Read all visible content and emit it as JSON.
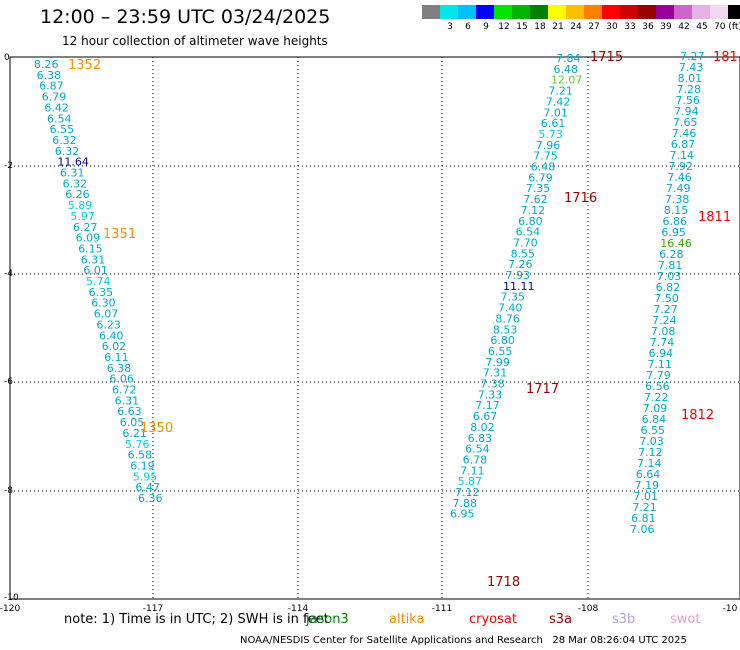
{
  "title": "12:00 – 23:59 UTC 03/24/2025",
  "subtitle": "12 hour collection of altimeter wave heights",
  "colorbar": {
    "colors": [
      "#808080",
      "#00e5e5",
      "#00bfff",
      "#0000ff",
      "#00e500",
      "#00b400",
      "#008000",
      "#ffff00",
      "#ffbf00",
      "#ff8000",
      "#ff0000",
      "#cc0000",
      "#990000",
      "#990099",
      "#cc66cc",
      "#e5b2e5",
      "#f2d8f2",
      "#000000"
    ],
    "labels": [
      "3",
      "6",
      "9",
      "12",
      "15",
      "18",
      "21",
      "24",
      "27",
      "30",
      "33",
      "36",
      "39",
      "42",
      "45",
      "70 (ft)"
    ]
  },
  "axes": {
    "x_ticks": [
      "-120",
      "-117",
      "-114",
      "-111",
      "-108",
      "-10"
    ],
    "y_ticks": [
      "0",
      "-2",
      "-4",
      "-6",
      "-8",
      "-10"
    ]
  },
  "note": {
    "text": "note: 1) Time is in UTC; 2) SWH is in feet",
    "satellites": [
      {
        "name": "jason3",
        "color": "#008000"
      },
      {
        "name": "altika",
        "color": "#ff8c00"
      },
      {
        "name": "cryosat",
        "color": "#ff0000"
      },
      {
        "name": "s3a",
        "color": "#a00000"
      },
      {
        "name": "s3b",
        "color": "#b8a0e0"
      },
      {
        "name": "swot",
        "color": "#e0a0d8"
      }
    ]
  },
  "footer": "NOAA/NESDIS Center for Satellite Applications and Research   28 Mar 08:26:04 UTC 2025",
  "tracks": [
    {
      "values": [
        {
          "v": "8.26",
          "c": "#00aacc"
        },
        {
          "v": "6.38",
          "c": "#00aacc"
        },
        {
          "v": "6.87",
          "c": "#00aacc"
        },
        {
          "v": "6.79",
          "c": "#00aacc"
        },
        {
          "v": "6.42",
          "c": "#00aacc"
        },
        {
          "v": "6.54",
          "c": "#00aacc"
        },
        {
          "v": "6.55",
          "c": "#00aacc"
        },
        {
          "v": "6.32",
          "c": "#00aacc"
        },
        {
          "v": "6.32",
          "c": "#00aacc"
        },
        {
          "v": "11.64",
          "c": "#0000aa"
        },
        {
          "v": "6.31",
          "c": "#00aacc"
        },
        {
          "v": "6.32",
          "c": "#00aacc"
        },
        {
          "v": "6.26",
          "c": "#00aacc"
        },
        {
          "v": "5.89",
          "c": "#00d0e0"
        },
        {
          "v": "5.97",
          "c": "#00d0e0"
        },
        {
          "v": "6.27",
          "c": "#00aacc"
        },
        {
          "v": "6.09",
          "c": "#00aacc"
        },
        {
          "v": "6.15",
          "c": "#00aacc"
        },
        {
          "v": "6.31",
          "c": "#00aacc"
        },
        {
          "v": "6.01",
          "c": "#00aacc"
        },
        {
          "v": "5.74",
          "c": "#00d0e0"
        },
        {
          "v": "6.35",
          "c": "#00aacc"
        },
        {
          "v": "6.30",
          "c": "#00aacc"
        },
        {
          "v": "6.07",
          "c": "#00aacc"
        },
        {
          "v": "6.23",
          "c": "#00aacc"
        },
        {
          "v": "6.40",
          "c": "#00aacc"
        },
        {
          "v": "6.02",
          "c": "#00aacc"
        },
        {
          "v": "6.11",
          "c": "#00aacc"
        },
        {
          "v": "6.38",
          "c": "#00aacc"
        },
        {
          "v": "6.06",
          "c": "#00aacc"
        },
        {
          "v": "6.72",
          "c": "#00aacc"
        },
        {
          "v": "6.31",
          "c": "#00aacc"
        },
        {
          "v": "6.63",
          "c": "#00aacc"
        },
        {
          "v": "6.05",
          "c": "#00aacc"
        },
        {
          "v": "6.21",
          "c": "#00aacc"
        },
        {
          "v": "5.76",
          "c": "#00d0e0"
        },
        {
          "v": "6.58",
          "c": "#00aacc"
        },
        {
          "v": "6.19",
          "c": "#00aacc"
        },
        {
          "v": "5.95",
          "c": "#00d0e0"
        },
        {
          "v": "6.47",
          "c": "#00aacc"
        },
        {
          "v": "6.36",
          "c": "#00aacc"
        }
      ]
    },
    {
      "values": [
        {
          "v": "7.84",
          "c": "#00aacc"
        },
        {
          "v": "6.48",
          "c": "#00aacc"
        },
        {
          "v": "12.07",
          "c": "#66cc33"
        },
        {
          "v": "7.21",
          "c": "#00aacc"
        },
        {
          "v": "7.42",
          "c": "#00aacc"
        },
        {
          "v": "7.01",
          "c": "#00aacc"
        },
        {
          "v": "6.61",
          "c": "#00aacc"
        },
        {
          "v": "5.73",
          "c": "#00d0e0"
        },
        {
          "v": "7.96",
          "c": "#00aacc"
        },
        {
          "v": "7.75",
          "c": "#00aacc"
        },
        {
          "v": "6.48",
          "c": "#00aacc"
        },
        {
          "v": "6.79",
          "c": "#00aacc"
        },
        {
          "v": "7.35",
          "c": "#00aacc"
        },
        {
          "v": "7.62",
          "c": "#00aacc"
        },
        {
          "v": "7.12",
          "c": "#00aacc"
        },
        {
          "v": "6.80",
          "c": "#00aacc"
        },
        {
          "v": "6.54",
          "c": "#00aacc"
        },
        {
          "v": "7.70",
          "c": "#00aacc"
        },
        {
          "v": "8.55",
          "c": "#00aacc"
        },
        {
          "v": "7.26",
          "c": "#00aacc"
        },
        {
          "v": "7.93",
          "c": "#00aacc"
        },
        {
          "v": "11.11",
          "c": "#0000aa"
        },
        {
          "v": "7.35",
          "c": "#00aacc"
        },
        {
          "v": "7.40",
          "c": "#00aacc"
        },
        {
          "v": "8.76",
          "c": "#00aacc"
        },
        {
          "v": "8.53",
          "c": "#00aacc"
        },
        {
          "v": "6.80",
          "c": "#00aacc"
        },
        {
          "v": "6.55",
          "c": "#00aacc"
        },
        {
          "v": "7.99",
          "c": "#00aacc"
        },
        {
          "v": "7.31",
          "c": "#00aacc"
        },
        {
          "v": "7.38",
          "c": "#00aacc"
        },
        {
          "v": "7.33",
          "c": "#00aacc"
        },
        {
          "v": "7.17",
          "c": "#00aacc"
        },
        {
          "v": "6.67",
          "c": "#00aacc"
        },
        {
          "v": "8.02",
          "c": "#00aacc"
        },
        {
          "v": "6.83",
          "c": "#00aacc"
        },
        {
          "v": "6.54",
          "c": "#00aacc"
        },
        {
          "v": "6.78",
          "c": "#00aacc"
        },
        {
          "v": "7.11",
          "c": "#00aacc"
        },
        {
          "v": "5.87",
          "c": "#00d0e0"
        },
        {
          "v": "7.12",
          "c": "#00aacc"
        },
        {
          "v": "7.88",
          "c": "#00aacc"
        },
        {
          "v": "6.95",
          "c": "#00aacc"
        }
      ]
    },
    {
      "values": [
        {
          "v": "7.27",
          "c": "#00aacc"
        },
        {
          "v": "7.43",
          "c": "#00aacc"
        },
        {
          "v": "8.01",
          "c": "#00aacc"
        },
        {
          "v": "7.28",
          "c": "#00aacc"
        },
        {
          "v": "7.56",
          "c": "#00aacc"
        },
        {
          "v": "7.94",
          "c": "#00aacc"
        },
        {
          "v": "7.65",
          "c": "#00aacc"
        },
        {
          "v": "7.46",
          "c": "#00aacc"
        },
        {
          "v": "6.87",
          "c": "#00aacc"
        },
        {
          "v": "7.14",
          "c": "#00aacc"
        },
        {
          "v": "7.92",
          "c": "#00aacc"
        },
        {
          "v": "7.46",
          "c": "#00aacc"
        },
        {
          "v": "7.49",
          "c": "#00aacc"
        },
        {
          "v": "7.38",
          "c": "#00aacc"
        },
        {
          "v": "8.15",
          "c": "#00aacc"
        },
        {
          "v": "6.86",
          "c": "#00aacc"
        },
        {
          "v": "6.95",
          "c": "#00aacc"
        },
        {
          "v": "16.46",
          "c": "#33aa00"
        },
        {
          "v": "6.28",
          "c": "#00aacc"
        },
        {
          "v": "7.81",
          "c": "#00aacc"
        },
        {
          "v": "7.03",
          "c": "#00aacc"
        },
        {
          "v": "6.82",
          "c": "#00aacc"
        },
        {
          "v": "7.50",
          "c": "#00aacc"
        },
        {
          "v": "7.27",
          "c": "#00aacc"
        },
        {
          "v": "7.24",
          "c": "#00aacc"
        },
        {
          "v": "7.08",
          "c": "#00aacc"
        },
        {
          "v": "7.74",
          "c": "#00aacc"
        },
        {
          "v": "6.94",
          "c": "#00aacc"
        },
        {
          "v": "7.11",
          "c": "#00aacc"
        },
        {
          "v": "7.79",
          "c": "#00aacc"
        },
        {
          "v": "6.56",
          "c": "#00aacc"
        },
        {
          "v": "7.22",
          "c": "#00aacc"
        },
        {
          "v": "7.09",
          "c": "#00aacc"
        },
        {
          "v": "6.84",
          "c": "#00aacc"
        },
        {
          "v": "6.55",
          "c": "#00aacc"
        },
        {
          "v": "7.03",
          "c": "#00aacc"
        },
        {
          "v": "7.12",
          "c": "#00aacc"
        },
        {
          "v": "7.14",
          "c": "#00aacc"
        },
        {
          "v": "6.64",
          "c": "#00aacc"
        },
        {
          "v": "7.19",
          "c": "#00aacc"
        },
        {
          "v": "7.01",
          "c": "#00aacc"
        },
        {
          "v": "7.21",
          "c": "#00aacc"
        },
        {
          "v": "6.81",
          "c": "#00aacc"
        },
        {
          "v": "7.06",
          "c": "#00aacc"
        }
      ]
    }
  ],
  "time_labels": [
    {
      "t": "1352",
      "c": "#ff8c00"
    },
    {
      "t": "1351",
      "c": "#ff8c00"
    },
    {
      "t": "1350",
      "c": "#ff8c00"
    },
    {
      "t": "1715",
      "c": "#990000"
    },
    {
      "t": "1716",
      "c": "#990000"
    },
    {
      "t": "1717",
      "c": "#990000"
    },
    {
      "t": "1718",
      "c": "#990000"
    },
    {
      "t": "181",
      "c": "#ff0000"
    },
    {
      "t": "1811",
      "c": "#ff0000"
    },
    {
      "t": "1812",
      "c": "#ff0000"
    }
  ]
}
